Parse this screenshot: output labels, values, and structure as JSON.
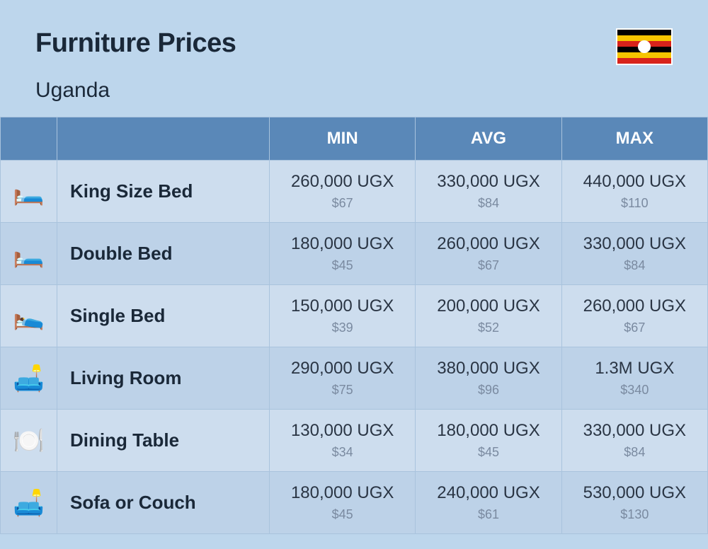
{
  "header": {
    "title": "Furniture Prices",
    "subtitle": "Uganda",
    "flag": {
      "stripes": [
        "#000000",
        "#f6c500",
        "#d8231b",
        "#000000",
        "#f6c500",
        "#d8231b"
      ],
      "circle_bg": "#ffffff",
      "emblem": "🦩"
    }
  },
  "columns": {
    "icon": "",
    "name": "",
    "min": "MIN",
    "avg": "AVG",
    "max": "MAX"
  },
  "rows": [
    {
      "icon": "🛏️",
      "name": "King Size Bed",
      "min": {
        "ugx": "260,000 UGX",
        "usd": "$67"
      },
      "avg": {
        "ugx": "330,000 UGX",
        "usd": "$84"
      },
      "max": {
        "ugx": "440,000 UGX",
        "usd": "$110"
      }
    },
    {
      "icon": "🛏️",
      "name": "Double Bed",
      "min": {
        "ugx": "180,000 UGX",
        "usd": "$45"
      },
      "avg": {
        "ugx": "260,000 UGX",
        "usd": "$67"
      },
      "max": {
        "ugx": "330,000 UGX",
        "usd": "$84"
      }
    },
    {
      "icon": "🛌",
      "name": "Single Bed",
      "min": {
        "ugx": "150,000 UGX",
        "usd": "$39"
      },
      "avg": {
        "ugx": "200,000 UGX",
        "usd": "$52"
      },
      "max": {
        "ugx": "260,000 UGX",
        "usd": "$67"
      }
    },
    {
      "icon": "🛋️",
      "name": "Living Room",
      "min": {
        "ugx": "290,000 UGX",
        "usd": "$75"
      },
      "avg": {
        "ugx": "380,000 UGX",
        "usd": "$96"
      },
      "max": {
        "ugx": "1.3M UGX",
        "usd": "$340"
      }
    },
    {
      "icon": "🍽️",
      "name": "Dining Table",
      "min": {
        "ugx": "130,000 UGX",
        "usd": "$34"
      },
      "avg": {
        "ugx": "180,000 UGX",
        "usd": "$45"
      },
      "max": {
        "ugx": "330,000 UGX",
        "usd": "$84"
      }
    },
    {
      "icon": "🛋️",
      "name": "Sofa or Couch",
      "min": {
        "ugx": "180,000 UGX",
        "usd": "$45"
      },
      "avg": {
        "ugx": "240,000 UGX",
        "usd": "$61"
      },
      "max": {
        "ugx": "530,000 UGX",
        "usd": "$130"
      }
    }
  ],
  "style": {
    "page_bg": "#bdd6ec",
    "header_bg": "#5a88b8",
    "header_text": "#ffffff",
    "row_odd_bg": "#cdddee",
    "row_even_bg": "#bdd2e8",
    "border_color": "#a9c3dd",
    "title_color": "#1a2838",
    "price_main_color": "#2a3544",
    "price_sub_color": "#7a8aa0",
    "title_fontsize": 38,
    "subtitle_fontsize": 30,
    "header_fontsize": 24,
    "name_fontsize": 26,
    "price_main_fontsize": 24,
    "price_sub_fontsize": 18
  }
}
